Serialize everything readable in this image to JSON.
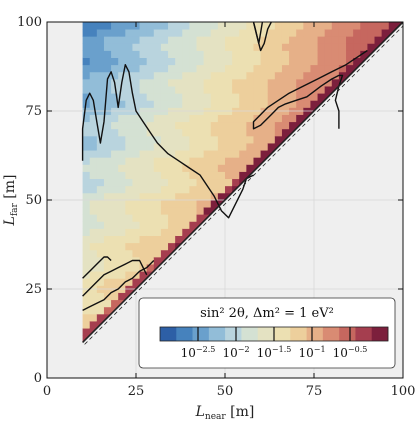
{
  "chart_data": {
    "type": "heatmap",
    "title": "",
    "xlabel_main": "L",
    "xlabel_sub": "near",
    "xlabel_unit": "[m]",
    "ylabel_main": "L",
    "ylabel_sub": "far",
    "ylabel_unit": "[m]",
    "xlim": [
      0,
      100
    ],
    "ylim": [
      0,
      100
    ],
    "x_ticks": [
      0,
      25,
      50,
      75,
      100
    ],
    "y_ticks": [
      0,
      25,
      50,
      75,
      100
    ],
    "x_tick_labels": [
      "0",
      "25",
      "50",
      "75",
      "100"
    ],
    "y_tick_labels": [
      "0",
      "25",
      "50",
      "75",
      "100"
    ],
    "grid": true,
    "region": "L_far > L_near, L_near >= 10",
    "colorbar": {
      "title": "sin² 2θ, Δm² = 1 eV²",
      "scale": "log",
      "range": [
        -3.0,
        0.0
      ],
      "tick_values": [
        -2.5,
        -2.0,
        -1.5,
        -1.0,
        -0.5
      ],
      "tick_labels": [
        {
          "base": "10",
          "exp": "−2.5"
        },
        {
          "base": "10",
          "exp": "−2"
        },
        {
          "base": "10",
          "exp": "−1.5"
        },
        {
          "base": "10",
          "exp": "−1"
        },
        {
          "base": "10",
          "exp": "−0.5"
        }
      ],
      "legend_position": "lower-right",
      "colors": [
        "#2d5fa6",
        "#4682bd",
        "#6aa0cc",
        "#92bdd8",
        "#b9d4de",
        "#d4e1d3",
        "#e4e2c2",
        "#ece0b2",
        "#edcf9c",
        "#e6b088",
        "#d98b73",
        "#c6675f",
        "#a53e4f",
        "#7c1f3c"
      ]
    },
    "contours_black": [
      {
        "level": "10^-2",
        "points": [
          [
            10,
            61
          ],
          [
            10,
            70
          ],
          [
            11,
            78
          ],
          [
            12,
            80
          ],
          [
            13,
            78
          ],
          [
            14,
            72
          ],
          [
            15,
            66
          ],
          [
            16,
            72
          ],
          [
            17,
            84
          ],
          [
            18,
            86
          ],
          [
            19,
            83
          ],
          [
            20,
            76
          ],
          [
            21,
            83
          ],
          [
            22,
            88
          ],
          [
            23,
            86
          ],
          [
            24,
            80
          ],
          [
            25,
            75
          ],
          [
            27,
            72
          ],
          [
            29,
            69
          ],
          [
            31,
            66
          ],
          [
            34,
            63
          ],
          [
            37,
            61
          ],
          [
            40,
            59
          ],
          [
            43,
            57
          ],
          [
            45,
            54
          ],
          [
            47,
            51
          ],
          [
            49,
            47
          ],
          [
            51,
            45
          ],
          [
            53,
            49
          ],
          [
            55,
            53
          ],
          [
            56,
            56
          ],
          [
            58,
            57
          ]
        ]
      },
      {
        "level": "10^-1.5",
        "points": [
          [
            10,
            28
          ],
          [
            12,
            30
          ],
          [
            14,
            32
          ],
          [
            16,
            34
          ],
          [
            17,
            34
          ],
          [
            18,
            33
          ]
        ]
      },
      {
        "level": "10^-1.5",
        "points": [
          [
            10,
            23
          ],
          [
            12,
            25
          ],
          [
            14,
            27
          ],
          [
            16,
            29
          ],
          [
            18,
            30
          ],
          [
            20,
            31
          ],
          [
            22,
            32
          ],
          [
            24,
            33
          ],
          [
            26,
            33
          ],
          [
            27,
            31
          ],
          [
            28,
            29
          ]
        ]
      },
      {
        "level": "10^-1",
        "points": [
          [
            10,
            19
          ],
          [
            12,
            20
          ],
          [
            14,
            21
          ],
          [
            16,
            22
          ],
          [
            18,
            24
          ],
          [
            20,
            25
          ],
          [
            22,
            27
          ],
          [
            24,
            28
          ],
          [
            26,
            30
          ],
          [
            28,
            31
          ],
          [
            30,
            33
          ]
        ]
      },
      {
        "level": "10^-1",
        "points": [
          [
            58,
            100
          ],
          [
            59,
            96
          ],
          [
            60,
            92
          ],
          [
            61,
            94
          ],
          [
            62,
            98
          ],
          [
            63,
            100
          ]
        ]
      },
      {
        "level": "10^-0.5",
        "points": [
          [
            58,
            100
          ],
          [
            58.5,
            98
          ],
          [
            59,
            96
          ],
          [
            59.5,
            94
          ],
          [
            60,
            97
          ],
          [
            60.5,
            100
          ]
        ]
      },
      {
        "level": "10^-0.5",
        "points": [
          [
            82,
            70
          ],
          [
            82,
            75
          ],
          [
            81,
            78
          ],
          [
            82,
            82
          ],
          [
            83,
            85
          ],
          [
            82,
            85
          ],
          [
            80,
            84
          ],
          [
            77,
            82
          ],
          [
            73,
            79
          ],
          [
            70,
            78
          ],
          [
            67,
            77
          ],
          [
            65,
            76
          ],
          [
            63,
            74
          ],
          [
            60,
            71
          ],
          [
            58,
            70
          ],
          [
            58,
            72
          ],
          [
            60,
            74
          ],
          [
            62,
            76
          ],
          [
            65,
            78
          ],
          [
            68,
            80
          ],
          [
            72,
            82
          ],
          [
            76,
            84
          ],
          [
            80,
            86
          ],
          [
            84,
            88
          ],
          [
            87,
            90
          ],
          [
            90,
            92
          ]
        ]
      }
    ]
  }
}
